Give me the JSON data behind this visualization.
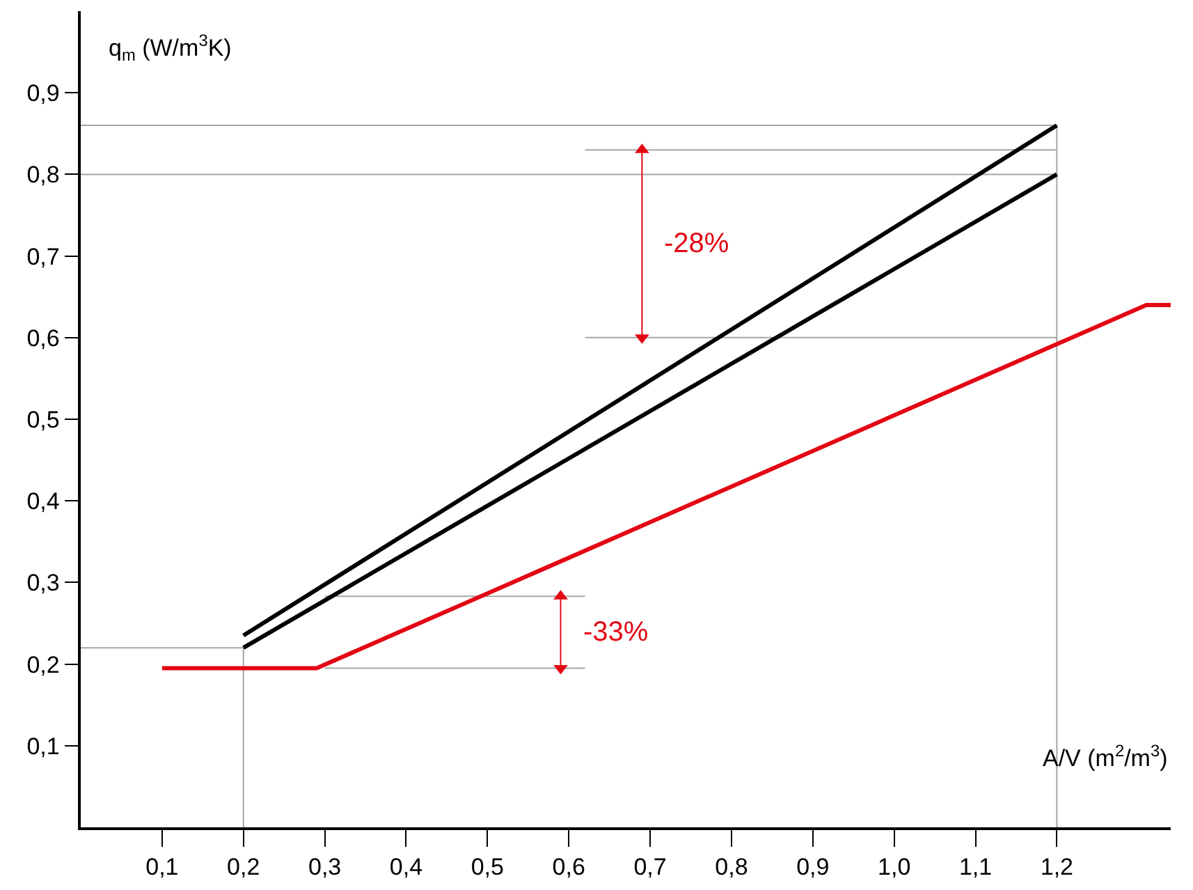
{
  "chart_data": {
    "type": "line",
    "xlabel": "A/V (m$^{2}$/m$^{3}$)",
    "ylabel": "q$_{m}$ (W/m$^{3}$K)",
    "xlim": [
      0,
      1.34
    ],
    "ylim": [
      0,
      1.0
    ],
    "xticks": [
      {
        "value": 0.1,
        "label": "0,1"
      },
      {
        "value": 0.2,
        "label": "0,2"
      },
      {
        "value": 0.3,
        "label": "0,3"
      },
      {
        "value": 0.4,
        "label": "0,4"
      },
      {
        "value": 0.5,
        "label": "0,5"
      },
      {
        "value": 0.6,
        "label": "0,6"
      },
      {
        "value": 0.7,
        "label": "0,7"
      },
      {
        "value": 0.8,
        "label": "0,8"
      },
      {
        "value": 0.9,
        "label": "0,9"
      },
      {
        "value": 1.0,
        "label": "1,0"
      },
      {
        "value": 1.1,
        "label": "1,1"
      },
      {
        "value": 1.2,
        "label": "1,2"
      }
    ],
    "yticks": [
      {
        "value": 0.1,
        "label": "0,1"
      },
      {
        "value": 0.2,
        "label": "0,2"
      },
      {
        "value": 0.3,
        "label": "0,3"
      },
      {
        "value": 0.4,
        "label": "0,4"
      },
      {
        "value": 0.5,
        "label": "0,5"
      },
      {
        "value": 0.6,
        "label": "0,6"
      },
      {
        "value": 0.7,
        "label": "0,7"
      },
      {
        "value": 0.8,
        "label": "0,8"
      },
      {
        "value": 0.9,
        "label": "0,9"
      }
    ],
    "grid": false,
    "series": [
      {
        "color": "#a6a6a6",
        "x": [
          0,
          1.2
        ],
        "values": [
          0.86,
          0.86
        ]
      },
      {
        "color": "#a6a6a6",
        "x": [
          0.62,
          1.2
        ],
        "values": [
          0.83,
          0.83
        ]
      },
      {
        "color": "#a6a6a6",
        "x": [
          0,
          1.2
        ],
        "values": [
          0.8,
          0.8
        ]
      },
      {
        "color": "#a6a6a6",
        "x": [
          0.62,
          1.2
        ],
        "values": [
          0.6,
          0.6
        ]
      },
      {
        "color": "#a6a6a6",
        "x": [
          0,
          0.2
        ],
        "values": [
          0.22,
          0.22
        ]
      },
      {
        "color": "#a6a6a6",
        "x": [
          0.3,
          0.62
        ],
        "values": [
          0.283,
          0.283
        ]
      },
      {
        "color": "#a6a6a6",
        "x": [
          0.3,
          0.62
        ],
        "values": [
          0.195,
          0.195
        ]
      },
      {
        "color": "#a6a6a6",
        "x": [
          0.2,
          0.2
        ],
        "values": [
          0,
          0.22
        ]
      },
      {
        "color": "#a6a6a6",
        "x": [
          1.2,
          1.2
        ],
        "values": [
          0,
          0.86
        ]
      },
      {
        "color": "#000000",
        "x": [
          0.2,
          1.2
        ],
        "values": [
          0.235,
          0.86
        ]
      },
      {
        "color": "#000000",
        "x": [
          0.2,
          1.2
        ],
        "values": [
          0.22,
          0.8
        ]
      },
      {
        "color": "#e30613",
        "x": [
          0.1,
          0.29,
          1.31,
          1.34
        ],
        "values": [
          0.195,
          0.195,
          0.64,
          0.64
        ]
      },
      {
        "color": "#e30613",
        "x": [
          0.69,
          0.69
        ],
        "values": [
          0.83,
          0.6
        ],
        "marker": "triangle"
      },
      {
        "color": "#e30613",
        "x": [
          0.59,
          0.59
        ],
        "values": [
          0.283,
          0.195
        ],
        "marker": "triangle"
      }
    ],
    "annotations": [
      "-28%",
      "-33%"
    ]
  }
}
